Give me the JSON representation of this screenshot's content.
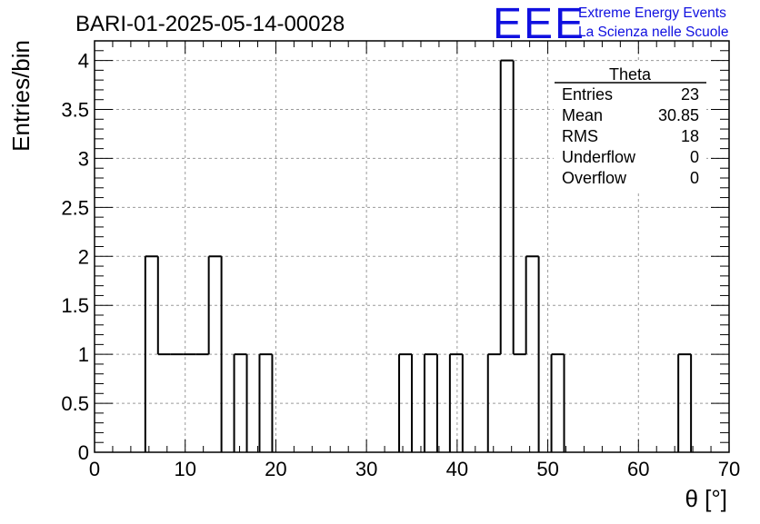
{
  "header": {
    "title": "BARI-01-2025-05-14-00028",
    "logo_text": "EEE",
    "logo_line1": "Extreme Energy Events",
    "logo_line2": "La Scienza nelle Scuole",
    "logo_color": "#1010e0"
  },
  "stats": {
    "title": "Theta",
    "rows": [
      {
        "label": "Entries",
        "value": "23"
      },
      {
        "label": "Mean",
        "value": "30.85"
      },
      {
        "label": "RMS",
        "value": "18"
      },
      {
        "label": "Underflow",
        "value": "0"
      },
      {
        "label": "Overflow",
        "value": "0"
      }
    ]
  },
  "chart_data": {
    "type": "histogram",
    "title": "BARI-01-2025-05-14-00028",
    "xlabel": "θ [°]",
    "ylabel": "Entries/bin",
    "xlim": [
      0,
      70
    ],
    "ylim": [
      0,
      4.2
    ],
    "bin_width": 1.4,
    "bin_lefts": [
      5.6,
      7.0,
      8.4,
      9.8,
      11.2,
      12.6,
      14.0,
      15.4,
      16.8,
      18.2,
      19.6,
      33.6,
      35.0,
      36.4,
      37.8,
      39.2,
      40.6,
      43.4,
      44.8,
      46.2,
      47.6,
      49.0,
      50.4,
      51.8,
      64.4,
      65.8
    ],
    "bin_values": [
      2,
      1,
      1,
      1,
      1,
      2,
      0,
      1,
      0,
      1,
      0,
      1,
      0,
      1,
      0,
      1,
      0,
      1,
      4,
      1,
      2,
      0,
      1,
      0,
      1,
      0
    ],
    "x_ticks": [
      0,
      10,
      20,
      30,
      40,
      50,
      60,
      70
    ],
    "y_ticks": [
      0,
      0.5,
      1,
      1.5,
      2,
      2.5,
      3,
      3.5,
      4
    ],
    "y_tick_labels": [
      "0",
      "0.5",
      "1",
      "1.5",
      "2",
      "2.5",
      "3",
      "3.5",
      "4"
    ],
    "grid": true,
    "line_color": "#000000"
  }
}
